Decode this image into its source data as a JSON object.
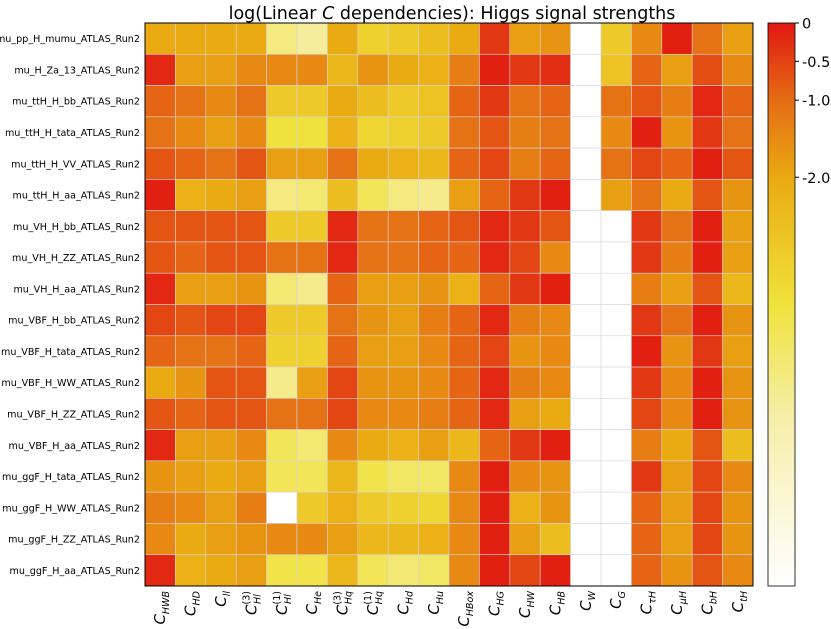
{
  "chart_data": {
    "type": "heatmap",
    "title": "log(Linear C dependencies): Higgs signal strengths",
    "title_parts": {
      "prefix": "log(Linear ",
      "italic": "C",
      "suffix": " dependencies): Higgs signal strengths"
    },
    "rows": [
      "mu_pp_H_mumu_ATLAS_Run2",
      "mu_H_Za_13_ATLAS_Run2",
      "mu_ttH_H_bb_ATLAS_Run2",
      "mu_ttH_H_tata_ATLAS_Run2",
      "mu_ttH_H_VV_ATLAS_Run2",
      "mu_ttH_H_aa_ATLAS_Run2",
      "mu_VH_H_bb_ATLAS_Run2",
      "mu_VH_H_ZZ_ATLAS_Run2",
      "mu_VH_H_aa_ATLAS_Run2",
      "mu_VBF_H_bb_ATLAS_Run2",
      "mu_VBF_H_tata_ATLAS_Run2",
      "mu_VBF_H_WW_ATLAS_Run2",
      "mu_VBF_H_ZZ_ATLAS_Run2",
      "mu_VBF_H_aa_ATLAS_Run2",
      "mu_ggF_H_tata_ATLAS_Run2",
      "mu_ggF_H_WW_ATLAS_Run2",
      "mu_ggF_H_ZZ_ATLAS_Run2",
      "mu_ggF_H_aa_ATLAS_Run2"
    ],
    "columns": [
      {
        "base": "C",
        "sub": "HWB",
        "sup": ""
      },
      {
        "base": "C",
        "sub": "HD",
        "sup": ""
      },
      {
        "base": "C",
        "sub": "ll",
        "sup": ""
      },
      {
        "base": "C",
        "sub": "Hl",
        "sup": "(3)"
      },
      {
        "base": "C",
        "sub": "Hl",
        "sup": "(1)"
      },
      {
        "base": "C",
        "sub": "He",
        "sup": ""
      },
      {
        "base": "C",
        "sub": "Hq",
        "sup": "(3)"
      },
      {
        "base": "C",
        "sub": "Hq",
        "sup": "(1)"
      },
      {
        "base": "C",
        "sub": "Hd",
        "sup": ""
      },
      {
        "base": "C",
        "sub": "Hu",
        "sup": ""
      },
      {
        "base": "C",
        "sub": "HBox",
        "sup": ""
      },
      {
        "base": "C",
        "sub": "HG",
        "sup": ""
      },
      {
        "base": "C",
        "sub": "HW",
        "sup": ""
      },
      {
        "base": "C",
        "sub": "HB",
        "sup": ""
      },
      {
        "base": "C",
        "sub": "W",
        "sup": ""
      },
      {
        "base": "C",
        "sub": "G",
        "sup": ""
      },
      {
        "base": "C",
        "sub": "τH",
        "sup": ""
      },
      {
        "base": "C",
        "sub": "μH",
        "sup": ""
      },
      {
        "base": "C",
        "sub": "bH",
        "sup": ""
      },
      {
        "base": "C",
        "sub": "tH",
        "sup": ""
      }
    ],
    "values": [
      [
        -1.1,
        -1.1,
        -1.1,
        -1.1,
        -2.5,
        -2.7,
        -1.1,
        -1.7,
        -1.6,
        -1.4,
        -1.1,
        -0.2,
        -1.0,
        -0.9,
        null,
        -1.6,
        -0.8,
        -0.05,
        -0.6,
        -1.0
      ],
      [
        -0.1,
        -1.0,
        -1.0,
        -0.8,
        -0.8,
        -0.8,
        -1.3,
        -0.9,
        -1.1,
        -1.2,
        -0.7,
        -0.05,
        -0.2,
        -0.15,
        null,
        -1.5,
        -0.5,
        -1.0,
        -0.35,
        -0.8
      ],
      [
        -0.5,
        -0.6,
        -0.8,
        -0.6,
        -1.6,
        -1.6,
        -1.1,
        -1.4,
        -1.6,
        -1.5,
        -0.5,
        -0.2,
        -0.6,
        -0.5,
        null,
        -0.6,
        -0.4,
        -0.7,
        -0.1,
        -0.5
      ],
      [
        -0.6,
        -0.8,
        -1.0,
        -0.8,
        -2.0,
        -2.0,
        -1.2,
        -1.8,
        -1.7,
        -1.6,
        -0.6,
        -0.4,
        -0.7,
        -0.6,
        null,
        -0.8,
        -0.05,
        -0.9,
        -0.2,
        -0.6
      ],
      [
        -0.4,
        -0.5,
        -0.6,
        -0.4,
        -1.0,
        -1.0,
        -0.6,
        -1.1,
        -1.2,
        -1.3,
        -0.5,
        -0.3,
        -0.7,
        -0.5,
        null,
        -0.6,
        -0.3,
        -0.5,
        -0.05,
        -0.4
      ],
      [
        -0.05,
        -1.2,
        -1.1,
        -1.0,
        -2.5,
        -2.4,
        -1.4,
        -2.2,
        -2.5,
        -2.6,
        -1.0,
        -0.5,
        -0.2,
        -0.05,
        null,
        -1.0,
        -0.6,
        -1.1,
        -0.4,
        -0.9
      ],
      [
        -0.4,
        -0.4,
        -0.4,
        -0.4,
        -1.6,
        -1.6,
        -0.1,
        -0.6,
        -0.6,
        -0.5,
        -0.4,
        -0.1,
        -0.2,
        -0.4,
        null,
        null,
        -0.2,
        -0.6,
        -0.05,
        -1.0
      ],
      [
        -0.4,
        -0.5,
        -0.4,
        -0.4,
        -0.6,
        -0.6,
        -0.1,
        -0.6,
        -0.6,
        -0.5,
        -0.5,
        -0.1,
        -0.3,
        -0.8,
        null,
        null,
        -0.2,
        -0.7,
        -0.05,
        -1.0
      ],
      [
        -0.1,
        -1.0,
        -1.0,
        -0.9,
        -2.4,
        -2.6,
        -0.5,
        -1.0,
        -1.0,
        -0.9,
        -1.2,
        -0.5,
        -0.2,
        -0.05,
        null,
        null,
        -0.7,
        -1.0,
        -0.4,
        -1.3
      ],
      [
        -0.3,
        -0.4,
        -0.3,
        -0.3,
        -1.6,
        -1.6,
        -0.6,
        -0.9,
        -1.0,
        -0.7,
        -0.5,
        -0.1,
        -0.7,
        -0.8,
        null,
        null,
        -0.2,
        -0.6,
        -0.05,
        -0.9
      ],
      [
        -0.5,
        -0.6,
        -0.6,
        -0.5,
        -1.7,
        -1.7,
        -0.5,
        -1.0,
        -1.0,
        -0.8,
        -0.5,
        -0.3,
        -0.9,
        -0.8,
        null,
        null,
        -0.05,
        -0.9,
        -0.2,
        -1.0
      ],
      [
        -1.1,
        -0.9,
        -0.4,
        -0.4,
        -2.6,
        -1.0,
        -0.3,
        -0.9,
        -0.9,
        -0.8,
        -0.5,
        -0.1,
        -0.7,
        -0.8,
        null,
        null,
        -0.2,
        -0.8,
        -0.05,
        -0.9
      ],
      [
        -0.4,
        -0.5,
        -0.4,
        -0.4,
        -0.6,
        -0.6,
        -0.3,
        -0.8,
        -0.8,
        -0.7,
        -0.5,
        -0.1,
        -1.0,
        -1.1,
        null,
        null,
        -0.3,
        -0.8,
        -0.05,
        -0.9
      ],
      [
        -0.1,
        -1.0,
        -1.0,
        -0.8,
        -2.2,
        -2.4,
        -0.8,
        -1.1,
        -1.2,
        -1.0,
        -1.3,
        -0.5,
        -0.2,
        -0.05,
        null,
        null,
        -0.7,
        -1.1,
        -0.4,
        -1.4
      ],
      [
        -0.9,
        -1.0,
        -1.1,
        -1.0,
        -2.2,
        -2.2,
        -1.3,
        -2.1,
        -2.3,
        -2.3,
        -0.8,
        -0.05,
        -0.8,
        -0.9,
        null,
        null,
        -0.2,
        -1.0,
        -0.3,
        -0.8
      ],
      [
        -0.7,
        -0.8,
        -1.0,
        -0.7,
        -4.0,
        -1.6,
        -1.2,
        -1.6,
        -1.7,
        -1.8,
        -0.8,
        -0.05,
        -1.2,
        -0.9,
        null,
        null,
        -0.5,
        -1.0,
        -0.3,
        -0.9
      ],
      [
        -0.8,
        -1.1,
        -1.0,
        -0.9,
        -0.8,
        -0.8,
        -1.0,
        -1.3,
        -1.3,
        -1.2,
        -0.8,
        -0.05,
        -1.0,
        -1.4,
        null,
        null,
        -0.5,
        -1.0,
        -0.3,
        -0.9
      ],
      [
        -0.1,
        -1.2,
        -1.1,
        -1.0,
        -2.1,
        -2.1,
        -1.3,
        -2.2,
        -2.4,
        -2.3,
        -0.8,
        -0.05,
        -0.3,
        -0.05,
        null,
        null,
        -0.5,
        -0.9,
        -0.4,
        -0.8
      ]
    ],
    "colorbar": {
      "colormap": "hot_r",
      "range": [
        -4.0,
        0.0
      ],
      "ticks": [
        {
          "value": 0.0,
          "label": "0"
        },
        {
          "value": -0.5,
          "label": "-0.5"
        },
        {
          "value": -1.0,
          "label": "-1.0"
        },
        {
          "value": -2.0,
          "label": "-2.0"
        }
      ]
    }
  }
}
